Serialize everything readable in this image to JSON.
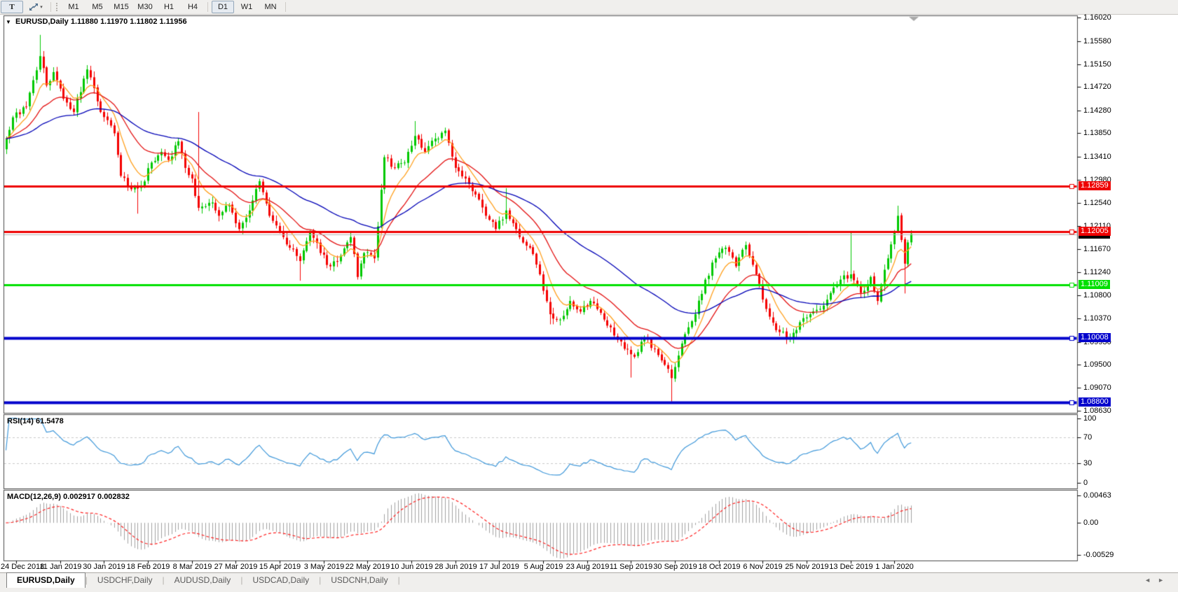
{
  "icons": {
    "title_marker": "▼",
    "tool_caret": "▾",
    "tab_prev": "◄",
    "tab_next": "►",
    "shift_marker": "▼"
  },
  "toolbar": {
    "text_tool_label": "T",
    "timeframes": [
      "M1",
      "M5",
      "M15",
      "M30",
      "H1",
      "H4",
      "D1",
      "W1",
      "MN"
    ],
    "active_timeframe": "D1"
  },
  "chart_title": "EURUSD,Daily  1.11880 1.11970 1.11802 1.11956",
  "rsi_title": "RSI(14) 61.5478",
  "macd_title": "MACD(12,26,9) 0.002917 0.002832",
  "tabs": [
    "EURUSD,Daily",
    "USDCHF,Daily",
    "AUDUSD,Daily",
    "USDCAD,Daily",
    "USDCNH,Daily"
  ],
  "active_tab": "EURUSD,Daily",
  "chart_data": {
    "type": "candlestick",
    "symbol": "EURUSD",
    "timeframe": "Daily",
    "ohlc_display": {
      "open": "1.11880",
      "high": "1.11970",
      "low": "1.11802",
      "close": "1.11956"
    },
    "up_color": "#00c800",
    "down_color": "#f40000",
    "y_range": {
      "max": 1.16059,
      "min": 1.0859
    },
    "y_axis": {
      "ticks": [
        "1.16020",
        "1.15580",
        "1.15150",
        "1.14720",
        "1.14280",
        "1.13850",
        "1.13410",
        "1.12980",
        "1.12540",
        "1.12110",
        "1.11670",
        "1.11240",
        "1.10800",
        "1.10370",
        "1.09930",
        "1.09500",
        "1.09070",
        "1.08630"
      ]
    },
    "x_axis": {
      "labels": [
        "24 Dec 2018",
        "11 Jan 2019",
        "30 Jan 2019",
        "18 Feb 2019",
        "8 Mar 2019",
        "27 Mar 2019",
        "15 Apr 2019",
        "3 May 2019",
        "22 May 2019",
        "10 Jun 2019",
        "28 Jun 2019",
        "17 Jul 2019",
        "5 Aug 2019",
        "23 Aug 2019",
        "11 Sep 2019",
        "30 Sep 2019",
        "18 Oct 2019",
        "6 Nov 2019",
        "25 Nov 2019",
        "13 Dec 2019",
        "1 Jan 2020"
      ],
      "bars_per_label": 13,
      "first_label_bar": 3
    },
    "bar_count": 269,
    "seed": 9,
    "close_anchors": [
      [
        0,
        1.1375
      ],
      [
        2,
        1.1415
      ],
      [
        6,
        1.1435
      ],
      [
        10,
        1.153
      ],
      [
        12,
        1.1475
      ],
      [
        14,
        1.15
      ],
      [
        17,
        1.145
      ],
      [
        20,
        1.1425
      ],
      [
        24,
        1.1505
      ],
      [
        25,
        1.149
      ],
      [
        28,
        1.1425
      ],
      [
        32,
        1.1385
      ],
      [
        34,
        1.1305
      ],
      [
        37,
        1.128
      ],
      [
        40,
        1.1285
      ],
      [
        43,
        1.133
      ],
      [
        46,
        1.135
      ],
      [
        48,
        1.1335
      ],
      [
        51,
        1.137
      ],
      [
        53,
        1.132
      ],
      [
        55,
        1.13
      ],
      [
        57,
        1.1245
      ],
      [
        61,
        1.1255
      ],
      [
        63,
        1.123
      ],
      [
        66,
        1.125
      ],
      [
        69,
        1.1205
      ],
      [
        72,
        1.124
      ],
      [
        75,
        1.1295
      ],
      [
        78,
        1.123
      ],
      [
        81,
        1.12
      ],
      [
        84,
        1.117
      ],
      [
        87,
        1.1145
      ],
      [
        90,
        1.12
      ],
      [
        93,
        1.116
      ],
      [
        96,
        1.1135
      ],
      [
        99,
        1.1155
      ],
      [
        102,
        1.119
      ],
      [
        104,
        1.1115
      ],
      [
        106,
        1.116
      ],
      [
        109,
        1.115
      ],
      [
        112,
        1.134
      ],
      [
        115,
        1.132
      ],
      [
        118,
        1.133
      ],
      [
        121,
        1.138
      ],
      [
        124,
        1.135
      ],
      [
        127,
        1.1375
      ],
      [
        130,
        1.139
      ],
      [
        133,
        1.132
      ],
      [
        136,
        1.13
      ],
      [
        139,
        1.127
      ],
      [
        142,
        1.123
      ],
      [
        145,
        1.1205
      ],
      [
        148,
        1.124
      ],
      [
        152,
        1.119
      ],
      [
        155,
        1.117
      ],
      [
        158,
        1.112
      ],
      [
        161,
        1.1045
      ],
      [
        164,
        1.1035
      ],
      [
        167,
        1.107
      ],
      [
        170,
        1.105
      ],
      [
        173,
        1.107
      ],
      [
        177,
        1.1035
      ],
      [
        180,
        1.1005
      ],
      [
        183,
        1.098
      ],
      [
        186,
        1.0965
      ],
      [
        189,
        1.1
      ],
      [
        192,
        1.098
      ],
      [
        195,
        1.095
      ],
      [
        197,
        1.0925
      ],
      [
        200,
        1.099
      ],
      [
        204,
        1.1045
      ],
      [
        207,
        1.111
      ],
      [
        210,
        1.115
      ],
      [
        213,
        1.117
      ],
      [
        216,
        1.1135
      ],
      [
        219,
        1.1175
      ],
      [
        222,
        1.112
      ],
      [
        225,
        1.1055
      ],
      [
        228,
        1.1015
      ],
      [
        232,
        1.1
      ],
      [
        235,
        1.103
      ],
      [
        238,
        1.1045
      ],
      [
        241,
        1.1055
      ],
      [
        244,
        1.1085
      ],
      [
        247,
        1.111
      ],
      [
        250,
        1.112
      ],
      [
        253,
        1.1085
      ],
      [
        256,
        1.1115
      ],
      [
        258,
        1.107
      ],
      [
        261,
        1.115
      ],
      [
        264,
        1.123
      ],
      [
        266,
        1.114
      ],
      [
        267,
        1.118
      ],
      [
        268,
        1.1196
      ]
    ],
    "spike_highs": [
      [
        10,
        1.157
      ],
      [
        57,
        1.1425
      ],
      [
        121,
        1.1408
      ],
      [
        148,
        1.1282
      ],
      [
        250,
        1.12
      ],
      [
        264,
        1.1249
      ]
    ],
    "spike_lows": [
      [
        39,
        1.1234
      ],
      [
        87,
        1.1108
      ],
      [
        161,
        1.1026
      ],
      [
        185,
        1.0926
      ],
      [
        197,
        1.0881
      ],
      [
        231,
        1.0989
      ],
      [
        266,
        1.1084
      ]
    ],
    "horizontal_lines": [
      {
        "label": "1.12859",
        "color": "#ee0000",
        "thickness": 3
      },
      {
        "label": "1.12005",
        "color": "#ee0000",
        "thickness": 3
      },
      {
        "label": "1.11009",
        "color": "#00e000",
        "thickness": 3
      },
      {
        "label": "1.10008",
        "color": "#0000cc",
        "thickness": 4
      },
      {
        "label": "1.08800",
        "color": "#0000cc",
        "thickness": 4
      }
    ],
    "current_price": {
      "label": "1.11956",
      "line_color": "#b4b4b4",
      "box_color": "#000000"
    },
    "ma_lines": [
      {
        "period": 8,
        "color": "#ffa01e"
      },
      {
        "period": 21,
        "color": "#e31212"
      },
      {
        "period": 55,
        "color": "#0000b6"
      }
    ],
    "rsi": {
      "period": 14,
      "value_display": "61.5478",
      "color": "#3e97d9",
      "scale_labels": [
        "100",
        "70",
        "30",
        "0"
      ],
      "dashed_levels": [
        70,
        30
      ],
      "level_color": "#c8c8c8"
    },
    "macd": {
      "fast": 12,
      "slow": 26,
      "signal": 9,
      "value_display": "0.002917",
      "signal_display": "0.002832",
      "y_max": 0.00463,
      "y_min": -0.00529,
      "scale_labels": [
        "0.00463",
        "0.00",
        "-0.00529"
      ],
      "histogram_color": "#a0a0a0",
      "signal_color": "#ff2020"
    }
  }
}
